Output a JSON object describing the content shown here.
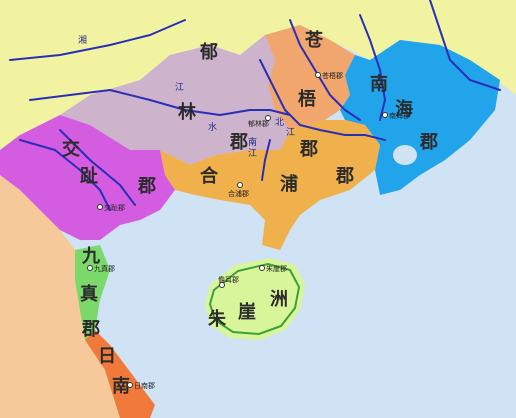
{
  "labels": {
    "yulin": [
      "郁",
      "林",
      "郡"
    ],
    "cangwu": [
      "苍",
      "梧",
      "郡"
    ],
    "nanhai": [
      "南",
      "海",
      "郡"
    ],
    "jiaozhi": [
      "交",
      "趾",
      "郡"
    ],
    "hepu": [
      "合",
      "浦",
      "郡"
    ],
    "jiuzhen": [
      "九",
      "真",
      "郡"
    ],
    "rinan": [
      "日",
      "南"
    ],
    "zhuya": [
      "朱",
      "崖",
      "洲"
    ]
  },
  "rivers": {
    "jiang": [
      "江"
    ],
    "shui": [
      "水"
    ],
    "xiangshui": [
      "湘"
    ],
    "nanjiang": [
      "南",
      "江"
    ],
    "beijiang": [
      "北",
      "江"
    ]
  },
  "towns": {
    "yulin_seat": "郁林郡",
    "cangwu_seat": "苍梧郡",
    "nanhai_seat": "南海郡",
    "hepu_seat": "合浦郡",
    "jiaozhi_seat": "交趾郡",
    "jiuzhen_seat": "九真郡",
    "rinan_seat": "日南郡",
    "zhuya_seat": "朱崖郡",
    "daner": "儋耳郡"
  },
  "colors": {
    "sea": "#cfe3f4",
    "north_land": "#f2f3a0",
    "yulin": "#cdb3cc",
    "cangwu": "#f0a66d",
    "nanhai": "#22a4ea",
    "jiaozhi": "#d35ce0",
    "hepu": "#f0b14d",
    "jiuzhen": "#7bd86a",
    "rinan": "#f07a3c",
    "west_land": "#f5c99a",
    "hainan": "#d9f59a",
    "river": "#2a2fb8"
  }
}
